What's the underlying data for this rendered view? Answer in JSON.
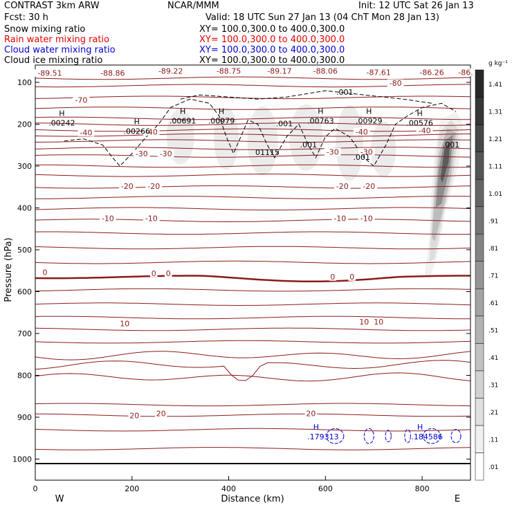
{
  "header": {
    "title": "CONTRAST   3km ARW",
    "center": "NCAR/MMM",
    "init": "Init: 12 UTC Sat 26 Jan 13",
    "fcst": "Fcst:    30 h",
    "valid": "Valid: 18 UTC Sun 27 Jan 13 (04 ChT Mon 28 Jan 13)",
    "fields": [
      {
        "label": "Snow mixing ratio",
        "xy": "XY= 100.0,300.0 to 400.0,300.0",
        "color": "#000000"
      },
      {
        "label": "Rain water mixing ratio",
        "xy": "XY= 100.0,300.0 to 400.0,300.0",
        "color": "#e00000"
      },
      {
        "label": "Cloud water mixing ratio",
        "xy": "XY= 100.0,300.0 to 400.0,300.0",
        "color": "#0000d0"
      },
      {
        "label": "Cloud ice mixing ratio",
        "xy": "XY= 100.0,300.0 to 400.0,300.0",
        "color": "#000000"
      }
    ]
  },
  "chart_data": {
    "type": "contour-cross-section",
    "xlabel": "Distance (km)",
    "ylabel": "Pressure (hPa)",
    "xlim": [
      0,
      900
    ],
    "ylim": [
      1050,
      50
    ],
    "x_ticks": [
      "0",
      "200",
      "400",
      "600",
      "800"
    ],
    "y_ticks": [
      "100",
      "200",
      "300",
      "400",
      "500",
      "600",
      "700",
      "800",
      "900",
      "1000"
    ],
    "end_labels": {
      "left": "W",
      "right": "E"
    },
    "colorbar": {
      "unit": "g kg⁻¹",
      "levels": [
        ".01",
        ".11",
        ".21",
        ".31",
        ".41",
        ".51",
        ".61",
        ".71",
        ".81",
        ".91",
        "1.01",
        "1.11",
        "1.21",
        "1.31",
        "1.41"
      ]
    },
    "temperature_labels": [
      {
        "x": 30,
        "p": 82,
        "text": "-89.51"
      },
      {
        "x": 160,
        "p": 82,
        "text": "-88.86"
      },
      {
        "x": 280,
        "p": 77,
        "text": "-89.22"
      },
      {
        "x": 400,
        "p": 77,
        "text": "-88.75"
      },
      {
        "x": 505,
        "p": 77,
        "text": "-89.17"
      },
      {
        "x": 600,
        "p": 77,
        "text": "-88.06"
      },
      {
        "x": 710,
        "p": 80,
        "text": "-87.61"
      },
      {
        "x": 820,
        "p": 80,
        "text": "-86.26"
      },
      {
        "x": 890,
        "p": 80,
        "text": "-86."
      },
      {
        "x": 745,
        "p": 106,
        "text": "-80"
      },
      {
        "x": 95,
        "p": 146,
        "text": "-70"
      },
      {
        "x": 105,
        "p": 224,
        "text": "-40"
      },
      {
        "x": 240,
        "p": 222,
        "text": "-40"
      },
      {
        "x": 675,
        "p": 222,
        "text": "-40"
      },
      {
        "x": 805,
        "p": 219,
        "text": "-40"
      },
      {
        "x": 220,
        "p": 274,
        "text": "-30"
      },
      {
        "x": 270,
        "p": 274,
        "text": "-30"
      },
      {
        "x": 615,
        "p": 270,
        "text": "-30"
      },
      {
        "x": 685,
        "p": 270,
        "text": "-30"
      },
      {
        "x": 190,
        "p": 352,
        "text": "-20"
      },
      {
        "x": 245,
        "p": 352,
        "text": "-20"
      },
      {
        "x": 635,
        "p": 352,
        "text": "-20"
      },
      {
        "x": 690,
        "p": 352,
        "text": "-20"
      },
      {
        "x": 150,
        "p": 429,
        "text": "-10"
      },
      {
        "x": 240,
        "p": 429,
        "text": "-10"
      },
      {
        "x": 630,
        "p": 429,
        "text": "-10"
      },
      {
        "x": 685,
        "p": 429,
        "text": "-10"
      },
      {
        "x": 20,
        "p": 558,
        "text": "0"
      },
      {
        "x": 245,
        "p": 560,
        "text": "0"
      },
      {
        "x": 275,
        "p": 560,
        "text": "0"
      },
      {
        "x": 615,
        "p": 569,
        "text": "0"
      },
      {
        "x": 655,
        "p": 569,
        "text": "0"
      },
      {
        "x": 185,
        "p": 680,
        "text": "10"
      },
      {
        "x": 680,
        "p": 676,
        "text": "10"
      },
      {
        "x": 710,
        "p": 676,
        "text": "10"
      },
      {
        "x": 205,
        "p": 900,
        "text": "20"
      },
      {
        "x": 260,
        "p": 895,
        "text": "20"
      },
      {
        "x": 570,
        "p": 895,
        "text": "20"
      }
    ],
    "extrema": [
      {
        "x": 55,
        "p": 200,
        "mark": "H",
        "text": ".00242"
      },
      {
        "x": 210,
        "p": 220,
        "mark": "H",
        "text": ".00266"
      },
      {
        "x": 305,
        "p": 195,
        "mark": "H",
        "text": ".00691"
      },
      {
        "x": 385,
        "p": 195,
        "mark": "H",
        "text": ".00979"
      },
      {
        "x": 480,
        "p": 270,
        "mark": "",
        "text": "01115"
      },
      {
        "x": 590,
        "p": 195,
        "mark": "H",
        "text": ".00763"
      },
      {
        "x": 690,
        "p": 195,
        "mark": "H",
        "text": ".00929"
      },
      {
        "x": 795,
        "p": 200,
        "mark": "H",
        "text": ".00576"
      }
    ],
    "ice_labels": [
      {
        "x": 640,
        "p": 130,
        "text": ".001"
      },
      {
        "x": 515,
        "p": 205,
        "text": ".001"
      },
      {
        "x": 565,
        "p": 255,
        "text": ".001"
      },
      {
        "x": 675,
        "p": 285,
        "text": ".001"
      },
      {
        "x": 860,
        "p": 255,
        "text": ".001"
      }
    ],
    "cloud_water_labels": [
      {
        "x": 595,
        "p": 940,
        "mark": "H",
        "text": ".179313"
      },
      {
        "x": 810,
        "p": 940,
        "mark": "H",
        "text": ".184586"
      }
    ]
  }
}
